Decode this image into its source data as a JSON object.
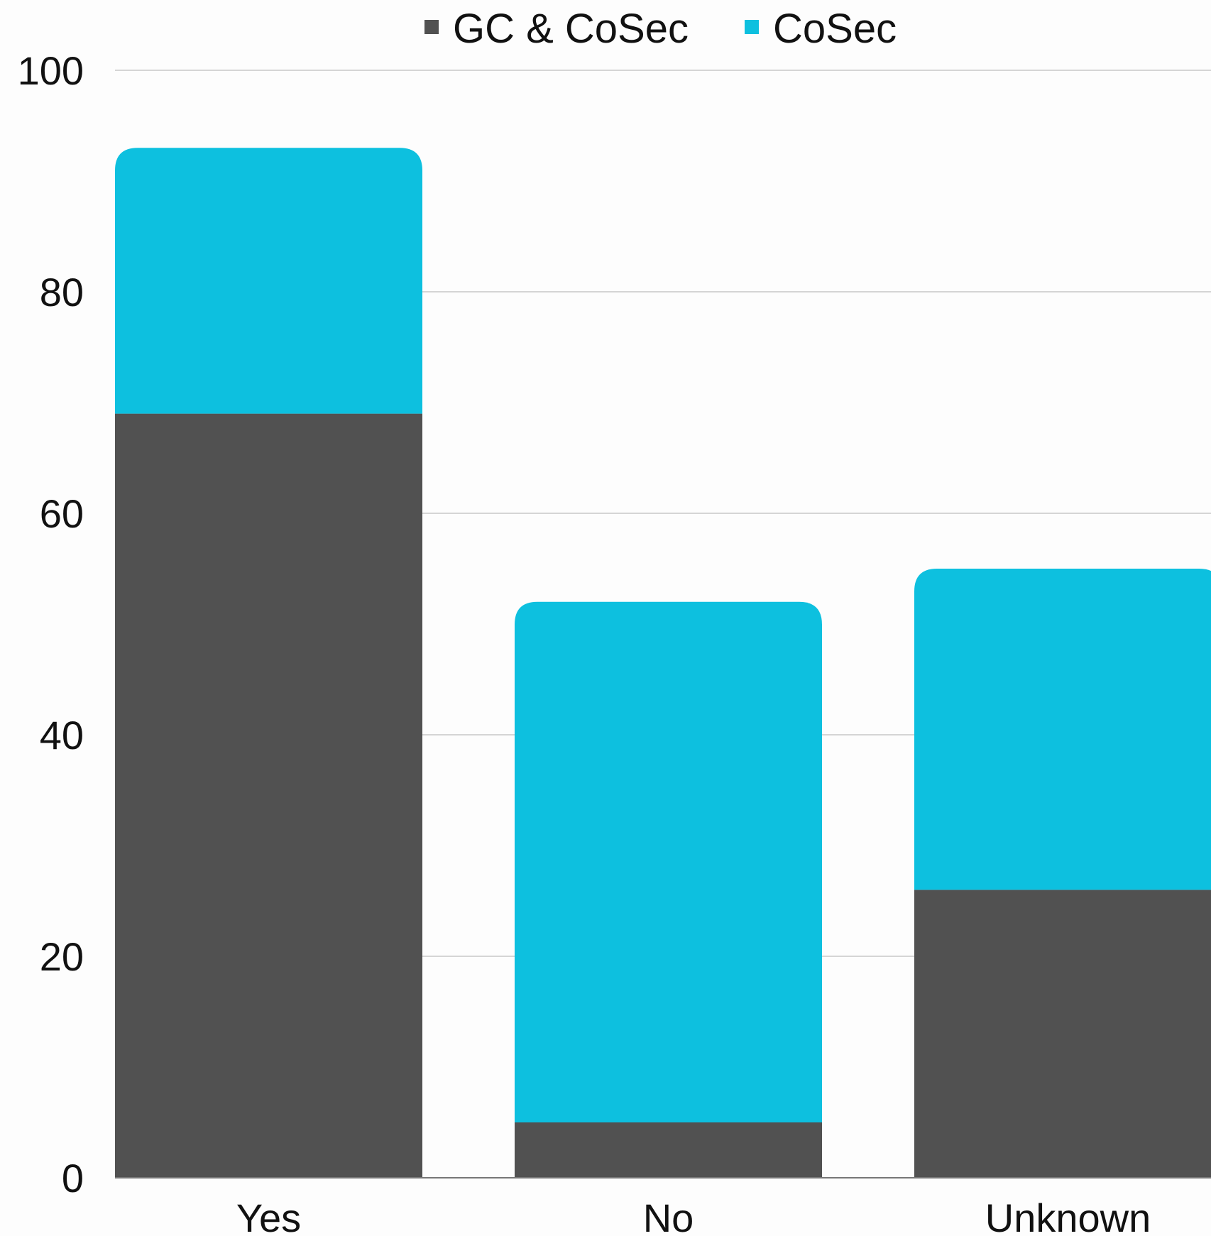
{
  "chart_data": {
    "type": "bar",
    "stacked": true,
    "categories": [
      "Yes",
      "No",
      "Unknown"
    ],
    "series": [
      {
        "name": "GC & CoSec",
        "values": [
          69,
          5,
          26
        ],
        "color": "#515151"
      },
      {
        "name": "CoSec",
        "values": [
          24,
          47,
          29
        ],
        "color": "#0dc0df"
      }
    ],
    "ylim": [
      0,
      100
    ],
    "yticks": [
      0,
      20,
      40,
      60,
      80,
      100
    ],
    "title": "",
    "xlabel": "",
    "ylabel": "",
    "grid": true,
    "legend_position": "top-center"
  }
}
